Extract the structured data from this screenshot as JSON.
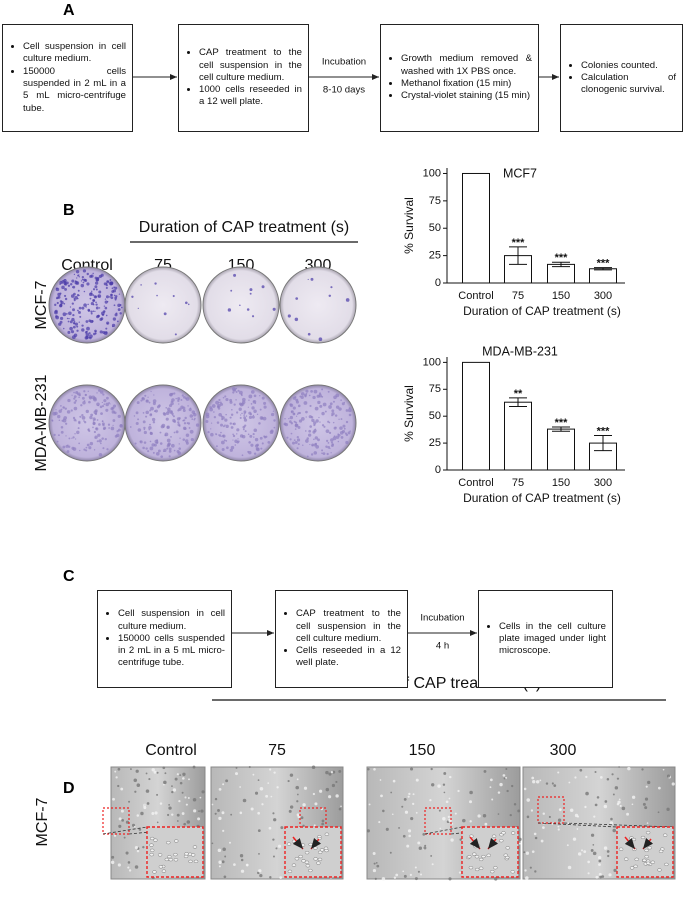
{
  "panel_a": {
    "label": "A",
    "steps": [
      [
        "Cell suspension in cell culture medium.",
        "150000 cells suspended in 2 mL in a 5 mL micro-centrifuge tube."
      ],
      [
        "CAP treatment to the cell suspension in the cell culture medium.",
        "1000 cells reseeded in a 12 well plate."
      ],
      [
        "Growth medium removed & washed with 1X PBS once.",
        "Methanol fixation (15 min)",
        "Crystal-violet staining (15 min)"
      ],
      [
        "Colonies counted.",
        "Calculation of clonogenic survival."
      ]
    ],
    "arrow_label": "Incubation",
    "arrow_sublabel": "8-10 days"
  },
  "panel_b": {
    "label": "B",
    "header": "Duration of CAP treatment (s)",
    "columns": [
      "Control",
      "75",
      "150",
      "300"
    ],
    "rows": [
      "MCF-7",
      "MDA-MB-231"
    ]
  },
  "chart_data": [
    {
      "type": "bar",
      "title": "MCF7",
      "categories": [
        "Control",
        "75",
        "150",
        "300"
      ],
      "values": [
        100,
        25,
        17,
        13
      ],
      "errors": [
        null,
        8,
        2,
        1
      ],
      "annotations": [
        null,
        "***",
        "***",
        "***"
      ],
      "color": "#ffffff",
      "ylim": [
        0,
        105
      ],
      "yticks": [
        0,
        25,
        50,
        75,
        100
      ],
      "ylabel": "% Survival",
      "xlabel": "Duration of CAP treatment (s)"
    },
    {
      "type": "bar",
      "title": "MDA-MB-231",
      "categories": [
        "Control",
        "75",
        "150",
        "300"
      ],
      "values": [
        100,
        63,
        38,
        25
      ],
      "errors": [
        null,
        4,
        2,
        7
      ],
      "annotations": [
        null,
        "**",
        "***",
        "***"
      ],
      "color": "#ffffff",
      "ylim": [
        0,
        105
      ],
      "yticks": [
        0,
        25,
        50,
        75,
        100
      ],
      "ylabel": "% Survival",
      "xlabel": "Duration of CAP treatment (s)"
    }
  ],
  "panel_c": {
    "label": "C",
    "steps": [
      [
        "Cell suspension in cell culture medium.",
        "150000 cells suspended in 2 mL in a 5 mL micro-centrifuge tube."
      ],
      [
        "CAP treatment to the cell suspension in the cell culture medium.",
        "Cells reseeded in a 12 well plate."
      ],
      [
        "Cells in the cell culture plate imaged under light microscope."
      ]
    ],
    "arrow_label": "Incubation",
    "arrow_sublabel": "4 h"
  },
  "panel_d": {
    "label": "D",
    "header": "Duration of CAP treatment (s)",
    "columns": [
      "Control",
      "75",
      "150",
      "300"
    ],
    "rows": [
      "MCF-7"
    ]
  }
}
